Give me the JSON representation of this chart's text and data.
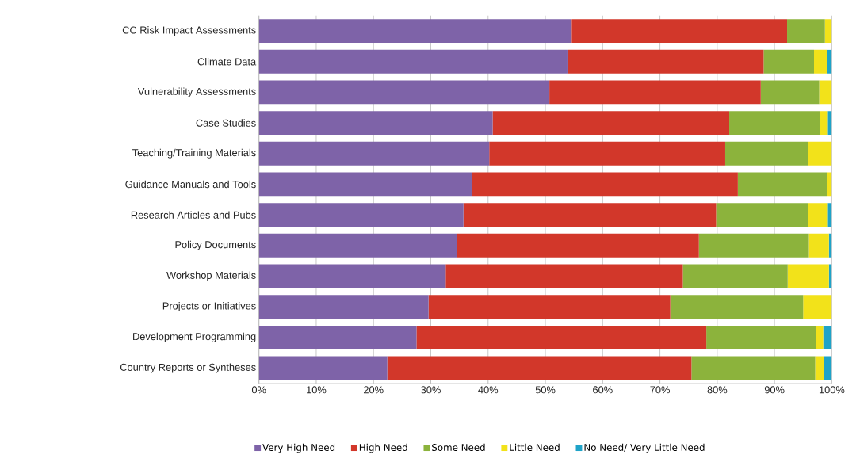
{
  "chart_data": {
    "type": "bar",
    "orientation": "horizontal",
    "stacked": true,
    "categories": [
      "CC Risk Impact Assessments",
      "Climate Data",
      "Vulnerability Assessments",
      "Case Studies",
      "Teaching/Training Materials",
      "Guidance Manuals and Tools",
      "Research Articles and Pubs",
      "Policy Documents",
      "Workshop Materials",
      "Projects or Initiatives",
      "Development Programming",
      "Country Reports or Syntheses"
    ],
    "series": [
      {
        "name": "Very High Need",
        "color": "#7e63a8",
        "values": [
          54.6,
          54.0,
          50.7,
          40.8,
          40.2,
          37.2,
          35.7,
          34.6,
          32.6,
          29.6,
          27.5,
          22.4
        ]
      },
      {
        "name": "High Need",
        "color": "#d2372a",
        "values": [
          37.6,
          34.1,
          36.9,
          41.3,
          41.2,
          46.4,
          44.1,
          42.2,
          41.4,
          42.2,
          50.6,
          53.1
        ]
      },
      {
        "name": "Some Need",
        "color": "#8cb33c",
        "values": [
          6.6,
          8.8,
          10.2,
          15.8,
          14.5,
          15.6,
          16.0,
          19.2,
          18.3,
          23.2,
          19.2,
          21.6
        ]
      },
      {
        "name": "Little Need",
        "color": "#f2e21a",
        "values": [
          1.2,
          2.3,
          2.2,
          1.4,
          4.1,
          0.8,
          3.5,
          3.5,
          7.2,
          5.0,
          1.2,
          1.5
        ]
      },
      {
        "name": "No Need/ Very Little Need",
        "color": "#1fa3c8",
        "values": [
          0,
          0.8,
          0,
          0.7,
          0,
          0,
          0.7,
          0.5,
          0.5,
          0,
          1.5,
          1.4
        ]
      }
    ],
    "xlim": [
      0,
      100
    ],
    "xticks": [
      {
        "value": 0,
        "label": "0%"
      },
      {
        "value": 10,
        "label": "10%"
      },
      {
        "value": 20,
        "label": "20%"
      },
      {
        "value": 30,
        "label": "30%"
      },
      {
        "value": 40,
        "label": "40%"
      },
      {
        "value": 50,
        "label": "50%"
      },
      {
        "value": 60,
        "label": "60%"
      },
      {
        "value": 70,
        "label": "70%"
      },
      {
        "value": 80,
        "label": "80%"
      },
      {
        "value": 90,
        "label": "90%"
      },
      {
        "value": 100,
        "label": "100%"
      }
    ],
    "grid": "x",
    "legend": "bottom"
  }
}
